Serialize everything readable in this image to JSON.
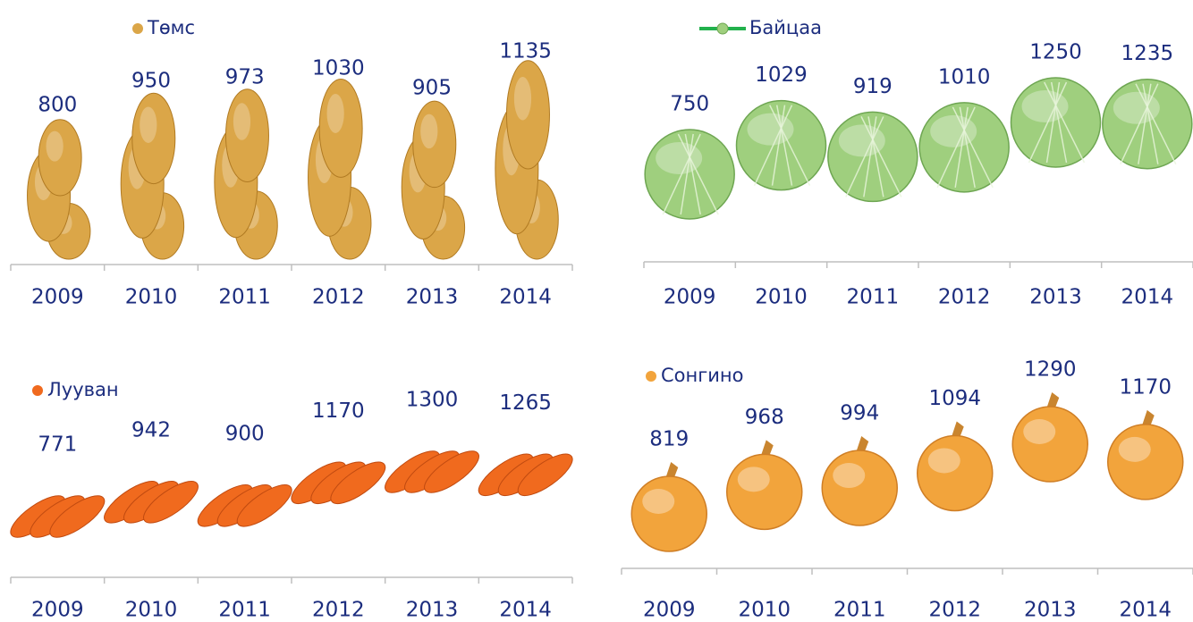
{
  "chart_data": [
    {
      "type": "pictograph",
      "categories": [
        "2009",
        "2010",
        "2011",
        "2012",
        "2013",
        "2014"
      ],
      "series": [
        {
          "name": "Төмс",
          "color": "#dba648",
          "values": [
            800,
            950,
            973,
            1030,
            905,
            1135
          ]
        }
      ]
    },
    {
      "type": "pictograph",
      "categories": [
        "2009",
        "2010",
        "2011",
        "2012",
        "2013",
        "2014"
      ],
      "series": [
        {
          "name": "Байцаа",
          "color": "#9fcf7e",
          "values": [
            750,
            1029,
            919,
            1010,
            1250,
            1235
          ]
        }
      ]
    },
    {
      "type": "pictograph",
      "categories": [
        "2009",
        "2010",
        "2011",
        "2012",
        "2013",
        "2014"
      ],
      "series": [
        {
          "name": "Лууван",
          "color": "#f06a1e",
          "values": [
            771,
            942,
            900,
            1170,
            1300,
            1265
          ]
        }
      ]
    },
    {
      "type": "pictograph",
      "categories": [
        "2009",
        "2010",
        "2011",
        "2012",
        "2013",
        "2014"
      ],
      "series": [
        {
          "name": "Сонгино",
          "color": "#f2a43c",
          "values": [
            819,
            968,
            994,
            1094,
            1290,
            1170
          ]
        }
      ]
    }
  ]
}
